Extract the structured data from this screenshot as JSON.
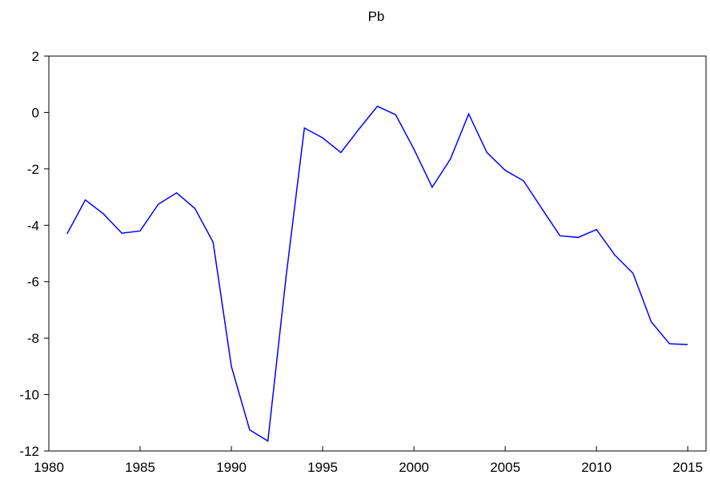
{
  "chart_data": {
    "type": "line",
    "title": "Pb",
    "x": [
      1981,
      1982,
      1983,
      1984,
      1985,
      1986,
      1987,
      1988,
      1989,
      1990,
      1991,
      1992,
      1993,
      1994,
      1995,
      1996,
      1997,
      1998,
      1999,
      2000,
      2001,
      2002,
      2003,
      2004,
      2005,
      2006,
      2007,
      2008,
      2009,
      2010,
      2011,
      2012,
      2013,
      2014,
      2015
    ],
    "series": [
      {
        "name": "Pb",
        "color": "#0000ff",
        "values": [
          -4.3,
          -3.1,
          -3.6,
          -4.28,
          -4.2,
          -3.25,
          -2.85,
          -3.4,
          -4.6,
          -9.0,
          -11.25,
          -11.65,
          -5.8,
          -0.55,
          -0.9,
          -1.42,
          -0.58,
          0.22,
          -0.08,
          -1.3,
          -2.65,
          -1.65,
          -0.05,
          -1.42,
          -2.05,
          -2.42,
          -3.4,
          -4.37,
          -4.43,
          -4.15,
          -5.05,
          -5.7,
          -7.42,
          -8.2,
          -8.23
        ]
      }
    ],
    "xlim": [
      1980,
      2016
    ],
    "xticks": [
      1980,
      1985,
      1990,
      1995,
      2000,
      2005,
      2010,
      2015
    ],
    "ylim": [
      -12,
      2
    ],
    "yticks": [
      -12,
      -10,
      -8,
      -6,
      -4,
      -2,
      0,
      2
    ],
    "grid": false
  }
}
